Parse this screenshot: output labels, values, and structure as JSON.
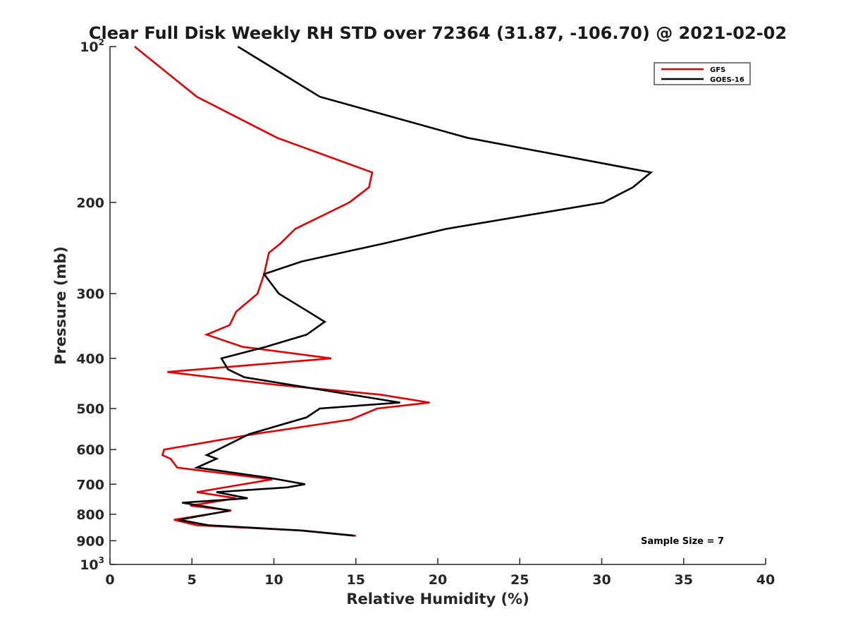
{
  "chart_data": {
    "type": "line",
    "title": "Clear Full Disk Weekly RH STD over 72364 (31.87, -106.70) @ 2021-02-02",
    "xlabel": "Relative Humidity (%)",
    "ylabel": "Pressure (mb)",
    "xlim": [
      0,
      40
    ],
    "ylim": [
      100,
      1000
    ],
    "y_scale": "log",
    "y_reversed": true,
    "x_ticks": [
      "0",
      "5",
      "10",
      "15",
      "20",
      "25",
      "30",
      "35",
      "40"
    ],
    "y_ticks": [
      {
        "value": 100,
        "base": "10",
        "exp": "2"
      },
      {
        "value": 200,
        "label": "200"
      },
      {
        "value": 300,
        "label": "300"
      },
      {
        "value": 400,
        "label": "400"
      },
      {
        "value": 500,
        "label": "500"
      },
      {
        "value": 600,
        "label": "600"
      },
      {
        "value": 700,
        "label": "700"
      },
      {
        "value": 800,
        "label": "800"
      },
      {
        "value": 900,
        "label": "900"
      },
      {
        "value": 1000,
        "base": "10",
        "exp": "3"
      }
    ],
    "legend_position": "top-right",
    "grid": false,
    "annotation": "Sample Size = 7",
    "series": [
      {
        "name": "GFS",
        "color": "#e60000",
        "points": [
          [
            1.5,
            100
          ],
          [
            5.3,
            125
          ],
          [
            10.2,
            150
          ],
          [
            16.0,
            175
          ],
          [
            15.8,
            187
          ],
          [
            14.6,
            200
          ],
          [
            11.3,
            225
          ],
          [
            10.4,
            240
          ],
          [
            9.7,
            250
          ],
          [
            9.4,
            275
          ],
          [
            9.0,
            300
          ],
          [
            7.7,
            325
          ],
          [
            7.3,
            345
          ],
          [
            5.9,
            360
          ],
          [
            8.1,
            380
          ],
          [
            13.5,
            400
          ],
          [
            3.5,
            425
          ],
          [
            10.2,
            450
          ],
          [
            16.5,
            470
          ],
          [
            19.5,
            487
          ],
          [
            16.3,
            500
          ],
          [
            14.7,
            525
          ],
          [
            8.8,
            560
          ],
          [
            3.3,
            600
          ],
          [
            3.2,
            615
          ],
          [
            3.7,
            625
          ],
          [
            4.1,
            650
          ],
          [
            9.9,
            685
          ],
          [
            5.3,
            725
          ],
          [
            7.7,
            745
          ],
          [
            4.9,
            770
          ],
          [
            7.4,
            787
          ],
          [
            3.9,
            820
          ],
          [
            5.3,
            840
          ],
          [
            11.7,
            860
          ],
          [
            15.0,
            880
          ]
        ]
      },
      {
        "name": "GOES-16",
        "color": "#000000",
        "points": [
          [
            7.8,
            100
          ],
          [
            12.8,
            125
          ],
          [
            21.8,
            150
          ],
          [
            33.0,
            175
          ],
          [
            31.9,
            187
          ],
          [
            30.1,
            200
          ],
          [
            20.5,
            225
          ],
          [
            16.7,
            240
          ],
          [
            11.7,
            260
          ],
          [
            9.4,
            275
          ],
          [
            10.3,
            300
          ],
          [
            12.1,
            325
          ],
          [
            13.1,
            340
          ],
          [
            12.0,
            360
          ],
          [
            9.5,
            380
          ],
          [
            6.8,
            400
          ],
          [
            7.2,
            420
          ],
          [
            8.2,
            435
          ],
          [
            14.7,
            470
          ],
          [
            17.7,
            487
          ],
          [
            12.8,
            500
          ],
          [
            12.0,
            520
          ],
          [
            8.5,
            560
          ],
          [
            6.6,
            600
          ],
          [
            5.9,
            615
          ],
          [
            6.5,
            625
          ],
          [
            5.3,
            650
          ],
          [
            9.7,
            680
          ],
          [
            11.9,
            700
          ],
          [
            10.8,
            710
          ],
          [
            6.5,
            725
          ],
          [
            8.4,
            745
          ],
          [
            4.4,
            760
          ],
          [
            7.3,
            787
          ],
          [
            4.2,
            820
          ],
          [
            6.0,
            840
          ],
          [
            11.7,
            860
          ],
          [
            14.9,
            880
          ]
        ]
      }
    ]
  }
}
